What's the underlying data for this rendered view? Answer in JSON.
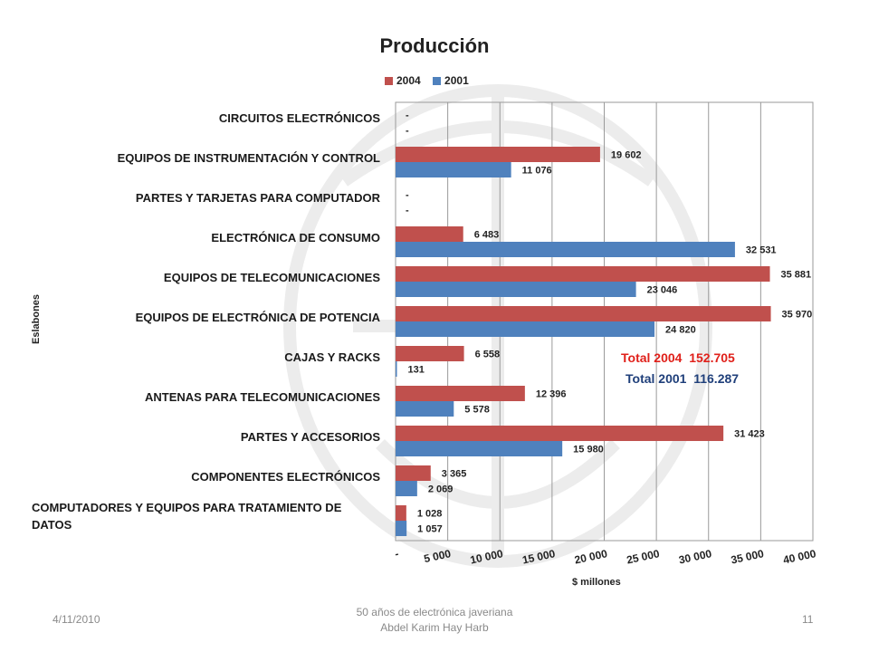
{
  "chart_data": {
    "type": "bar",
    "orientation": "horizontal",
    "title": "Producción",
    "xlabel": "$ millones",
    "ylabel": "Eslabones",
    "xlim": [
      0,
      40000
    ],
    "x_ticks": [
      0,
      5000,
      10000,
      15000,
      20000,
      25000,
      30000,
      35000,
      40000
    ],
    "x_tick_labels": [
      "-",
      "5 000",
      "10 000",
      "15 000",
      "20 000",
      "25 000",
      "30 000",
      "35 000",
      "40 000"
    ],
    "grid": "vertical",
    "legend_position": "top",
    "categories": [
      "CIRCUITOS ELECTRÓNICOS",
      "EQUIPOS DE INSTRUMENTACIÓN Y CONTROL",
      "PARTES Y TARJETAS PARA COMPUTADOR",
      "ELECTRÓNICA DE CONSUMO",
      "EQUIPOS DE TELECOMUNICACIONES",
      "EQUIPOS DE ELECTRÓNICA DE POTENCIA",
      "CAJAS Y RACKS",
      "ANTENAS PARA TELECOMUNICACIONES",
      "PARTES Y ACCESORIOS",
      "COMPONENTES ELECTRÓNICOS",
      "COMPUTADORES Y EQUIPOS PARA TRATAMIENTO DE DATOS"
    ],
    "category_lines": [
      [
        "CIRCUITOS ELECTRÓNICOS"
      ],
      [
        "EQUIPOS DE INSTRUMENTACIÓN Y CONTROL"
      ],
      [
        "PARTES Y TARJETAS PARA COMPUTADOR"
      ],
      [
        "ELECTRÓNICA DE CONSUMO"
      ],
      [
        "EQUIPOS DE TELECOMUNICACIONES"
      ],
      [
        "EQUIPOS DE ELECTRÓNICA DE POTENCIA"
      ],
      [
        "CAJAS Y RACKS"
      ],
      [
        "ANTENAS PARA TELECOMUNICACIONES"
      ],
      [
        "PARTES Y ACCESORIOS"
      ],
      [
        "COMPONENTES ELECTRÓNICOS"
      ],
      [
        "COMPUTADORES Y EQUIPOS PARA TRATAMIENTO DE",
        "DATOS"
      ]
    ],
    "series": [
      {
        "name": "2004",
        "color": "#c0504d",
        "values": [
          0,
          19602,
          0,
          6483,
          35881,
          35970,
          6558,
          12396,
          31423,
          3365,
          1028
        ],
        "labels": [
          "-",
          "19 602",
          "-",
          "6 483",
          "35 881",
          "35 970",
          "6 558",
          "12 396",
          "31 423",
          "3 365",
          "1 028"
        ]
      },
      {
        "name": "2001",
        "color": "#4f81bd",
        "values": [
          0,
          11076,
          0,
          32531,
          23046,
          24820,
          131,
          5578,
          15980,
          2069,
          1057
        ],
        "labels": [
          "-",
          "11 076",
          "-",
          "32 531",
          "23 046",
          "24 820",
          "131",
          "5 578",
          "15 980",
          "2 069",
          "1 057"
        ]
      }
    ],
    "annotations": {
      "total_2004": {
        "label": "Total  2004",
        "value": "152.705",
        "color": "#e0201a"
      },
      "total_2001": {
        "label": "Total 2001",
        "value": "116.287",
        "color": "#1f3f7a"
      }
    }
  },
  "footer": {
    "date": "4/11/2010",
    "line1": "50 años de electrónica javeriana",
    "line2": "Abdel Karim Hay Harb",
    "page": "11"
  }
}
